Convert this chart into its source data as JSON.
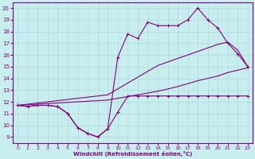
{
  "xlabel": "Windchill (Refroidissement éolien,°C)",
  "xlim": [
    -0.5,
    23.5
  ],
  "ylim": [
    8.5,
    20.5
  ],
  "xticks": [
    0,
    1,
    2,
    3,
    4,
    5,
    6,
    7,
    8,
    9,
    10,
    11,
    12,
    13,
    14,
    15,
    16,
    17,
    18,
    19,
    20,
    21,
    22,
    23
  ],
  "yticks": [
    9,
    10,
    11,
    12,
    13,
    14,
    15,
    16,
    17,
    18,
    19,
    20
  ],
  "bg_color": "#c8eef0",
  "line_color": "#800080",
  "grid_color": "#b0d8dc",
  "line1_x": [
    0,
    1,
    2,
    3,
    4,
    5,
    6,
    7,
    8,
    9,
    10,
    11,
    12,
    13,
    14,
    15,
    16,
    17,
    18,
    19,
    20,
    21,
    22,
    23
  ],
  "line1_y": [
    11.7,
    11.6,
    11.7,
    11.7,
    11.6,
    11.0,
    9.8,
    9.3,
    9.0,
    9.7,
    11.1,
    12.5,
    12.5,
    12.5,
    12.5,
    12.5,
    12.5,
    12.5,
    12.5,
    12.5,
    12.5,
    12.5,
    12.5,
    12.5
  ],
  "line2_x": [
    0,
    1,
    2,
    3,
    4,
    5,
    6,
    7,
    8,
    9,
    10,
    11,
    12,
    13,
    14,
    15,
    16,
    17,
    18,
    19,
    20,
    21,
    22,
    23
  ],
  "line2_y": [
    11.7,
    11.6,
    11.7,
    11.7,
    11.6,
    11.0,
    9.8,
    9.3,
    9.0,
    9.7,
    15.8,
    17.8,
    17.4,
    18.8,
    18.5,
    18.5,
    18.5,
    19.0,
    20.0,
    19.0,
    18.3,
    17.0,
    16.1,
    15.0
  ],
  "line3_x": [
    0,
    1,
    2,
    3,
    4,
    5,
    6,
    7,
    8,
    9,
    10,
    11,
    12,
    13,
    14,
    15,
    16,
    17,
    18,
    19,
    20,
    21,
    22,
    23
  ],
  "line3_y": [
    11.7,
    11.75,
    11.8,
    11.85,
    11.9,
    11.95,
    12.0,
    12.05,
    12.1,
    12.15,
    12.3,
    12.45,
    12.6,
    12.75,
    12.9,
    13.1,
    13.3,
    13.55,
    13.8,
    14.0,
    14.2,
    14.5,
    14.7,
    14.9
  ],
  "line4_x": [
    0,
    1,
    2,
    3,
    4,
    5,
    6,
    7,
    8,
    9,
    10,
    11,
    12,
    13,
    14,
    15,
    16,
    17,
    18,
    19,
    20,
    21,
    22,
    23
  ],
  "line4_y": [
    11.7,
    11.8,
    11.9,
    12.0,
    12.1,
    12.2,
    12.3,
    12.4,
    12.5,
    12.6,
    13.1,
    13.6,
    14.1,
    14.6,
    15.1,
    15.4,
    15.7,
    16.0,
    16.3,
    16.6,
    16.9,
    17.1,
    16.4,
    15.0
  ]
}
